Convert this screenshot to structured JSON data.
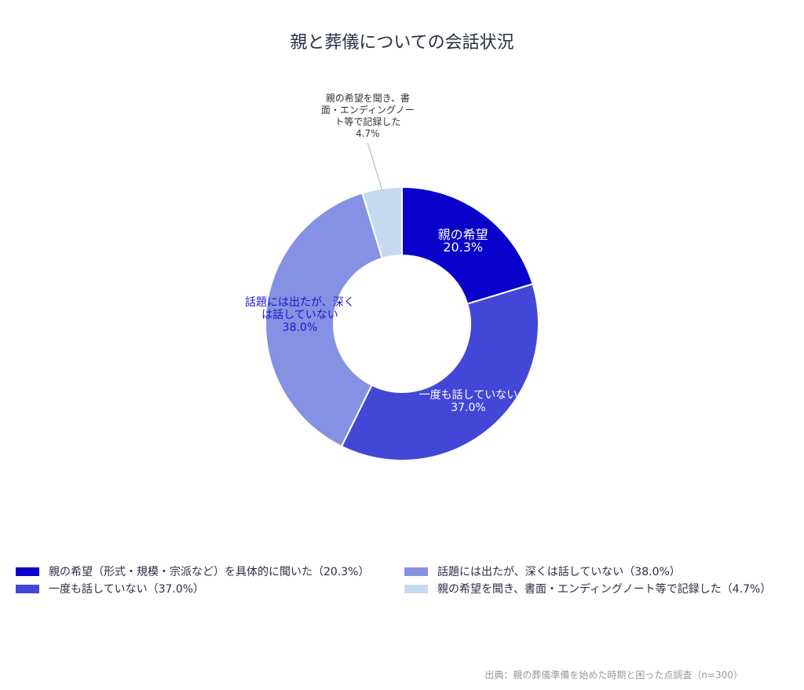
{
  "chart_data": {
    "type": "donut",
    "title": "親と葬儀についての会話状況",
    "categories": [
      "親の希望（形式・規模・宗派など）を具体的に聞いた（20.3%）",
      "一度も話していない（37.0%）",
      "話題には出たが、深くは話していない（38.0%）",
      "親の希望を聞き、書面・エンディングノート等で記録した（4.7%）"
    ],
    "labels": [
      "親の希望",
      "一度も話していない",
      "話題には出たが、深くは話していない",
      "親の希望を聞き、書面・エンディングノート等で記録した"
    ],
    "values": [
      20.3,
      37.0,
      38.0,
      4.7
    ],
    "value_labels": [
      "20.3%",
      "37.0%",
      "38.0%",
      "4.7%"
    ],
    "colors": [
      "#0a00cc",
      "#4347d8",
      "#8591e3",
      "#c6d9f0"
    ],
    "label_colors": [
      "#ffffff",
      "#ffffff",
      "#1a1acc",
      "#333333"
    ],
    "source": "出典：親の葬儀準備を始めた時期と困った点調査（n=300）"
  }
}
